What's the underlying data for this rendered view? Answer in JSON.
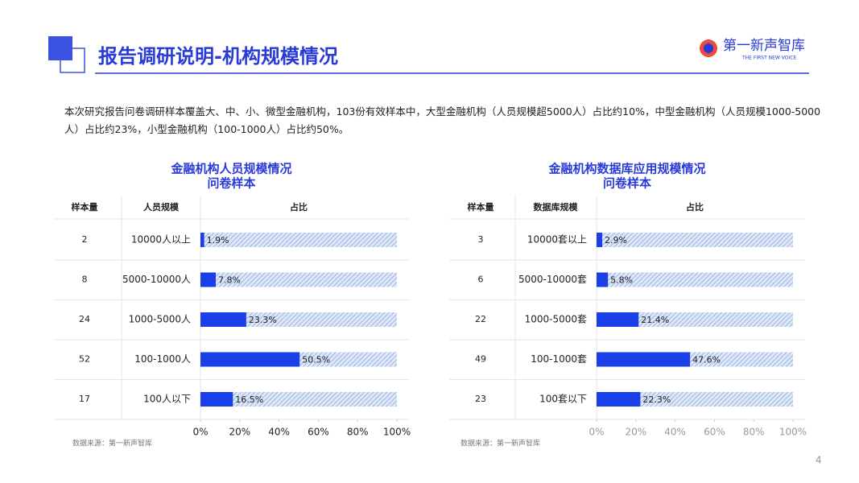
{
  "header": {
    "title": "报告调研说明-机构规模情况",
    "logo": "第一新声智库",
    "logo_sub": "THE FIRST NEW VOICE"
  },
  "intro": "本次研究报告问卷调研样本覆盖大、中、小、微型金融机构，103份有效样本中，大型金融机构（人员规模超5000人）占比约10%，中型金融机构（人员规模1000-5000人）占比约23%，小型金融机构（100-1000人）占比约50%。",
  "page_number": "4",
  "chart_data": [
    {
      "type": "bar",
      "orientation": "horizontal",
      "title": "金融机构人员规模情况",
      "subtitle": "问卷样本",
      "columns": [
        "样本量",
        "人员规模",
        "占比"
      ],
      "sample_sizes": [
        "2",
        "8",
        "24",
        "52",
        "17"
      ],
      "categories": [
        "10000人以上",
        "5000-10000人",
        "1000-5000人",
        "100-1000人",
        "100人以下"
      ],
      "values": [
        1.9,
        7.8,
        23.3,
        50.5,
        16.5
      ],
      "value_labels": [
        "1.9%",
        "7.8%",
        "23.3%",
        "50.5%",
        "16.5%"
      ],
      "color": "#1a3ee8",
      "xlim": [
        0,
        100
      ],
      "xticks": [
        {
          "value": 0,
          "label": "0%"
        },
        {
          "value": 20,
          "label": "20%"
        },
        {
          "value": 40,
          "label": "40%"
        },
        {
          "value": 60,
          "label": "60%"
        },
        {
          "value": 80,
          "label": "80%"
        },
        {
          "value": 100,
          "label": "100%"
        }
      ],
      "source": "数据来源：第一新声智库"
    },
    {
      "type": "bar",
      "orientation": "horizontal",
      "title": "金融机构数据库应用规模情况",
      "subtitle": "问卷样本",
      "columns": [
        "样本量",
        "数据库规模",
        "占比"
      ],
      "sample_sizes": [
        "3",
        "6",
        "22",
        "49",
        "23"
      ],
      "categories": [
        "10000套以上",
        "5000-10000套",
        "1000-5000套",
        "100-1000套",
        "100套以下"
      ],
      "values": [
        2.9,
        5.8,
        21.4,
        47.6,
        22.3
      ],
      "value_labels": [
        "2.9%",
        "5.8%",
        "21.4%",
        "47.6%",
        "22.3%"
      ],
      "color": "#1a3ee8",
      "xlim": [
        0,
        100
      ],
      "xticks": [
        {
          "value": 0,
          "label": "0%"
        },
        {
          "value": 20,
          "label": "20%"
        },
        {
          "value": 40,
          "label": "40%"
        },
        {
          "value": 60,
          "label": "60%"
        },
        {
          "value": 80,
          "label": "80%"
        },
        {
          "value": 100,
          "label": "100%"
        }
      ],
      "source": "数据来源：第一新声智库"
    }
  ]
}
